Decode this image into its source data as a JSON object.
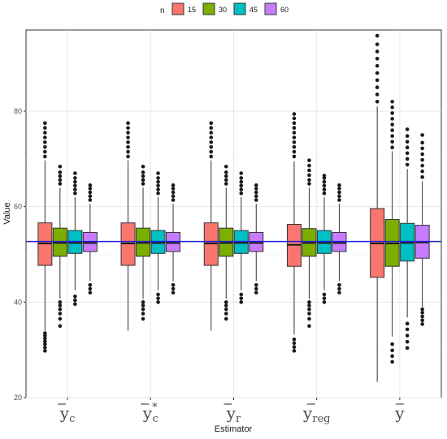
{
  "chart_data": {
    "type": "boxplot",
    "xlabel": "Estimator",
    "ylabel": "Value",
    "ylim": [
      20,
      97
    ],
    "yticks": [
      20,
      40,
      60,
      80
    ],
    "reference_line": 52.7,
    "reference_color": "#1f1fd6",
    "grid": true,
    "legend": {
      "title": "n",
      "placement": "top",
      "entries": [
        {
          "label": "15",
          "color": "#f8766d"
        },
        {
          "label": "30",
          "color": "#7cae00"
        },
        {
          "label": "45",
          "color": "#00bfc4"
        },
        {
          "label": "60",
          "color": "#c77cff"
        }
      ]
    },
    "categories": [
      {
        "base": "y",
        "sub": "c",
        "sup": ""
      },
      {
        "base": "y",
        "sub": "c",
        "sup": "*"
      },
      {
        "base": "y",
        "sub": "r",
        "sup": ""
      },
      {
        "base": "y",
        "sub": "reg",
        "sup": ""
      },
      {
        "base": "y",
        "sub": "",
        "sup": ""
      }
    ],
    "series": [
      {
        "name": "15",
        "boxes": [
          {
            "q1": 47.7,
            "median": 52.3,
            "q3": 56.6,
            "whisker_low": 34.0,
            "whisker_high": 69.7,
            "outliers": [
              29.8,
              30.5,
              31.2,
              31.8,
              32.4,
              33.0,
              33.5,
              70.5,
              71.5,
              72.5,
              73.5,
              74.5,
              75.5,
              76.5,
              77.5
            ]
          },
          {
            "q1": 47.7,
            "median": 52.3,
            "q3": 56.6,
            "whisker_low": 34.0,
            "whisker_high": 69.7,
            "outliers": [
              70.5,
              71.5,
              72.5,
              73.5,
              74.5,
              75.5,
              76.5,
              77.5
            ]
          },
          {
            "q1": 47.7,
            "median": 52.3,
            "q3": 56.6,
            "whisker_low": 34.0,
            "whisker_high": 69.7,
            "outliers": [
              70.5,
              71.5,
              72.5,
              73.5,
              74.5,
              75.5,
              76.5,
              77.5
            ]
          },
          {
            "q1": 47.5,
            "median": 52.0,
            "q3": 56.3,
            "whisker_low": 33.2,
            "whisker_high": 69.5,
            "outliers": [
              29.8,
              30.6,
              31.4,
              32.2,
              70.5,
              71.5,
              72.5,
              73.5,
              74.5,
              75.5,
              76.5,
              77.5,
              78.5,
              79.4
            ]
          },
          {
            "q1": 45.2,
            "median": 52.3,
            "q3": 59.6,
            "whisker_low": 23.3,
            "whisker_high": 81.0,
            "outliers": [
              82.0,
              83.5,
              85.0,
              86.5,
              88.0,
              89.5,
              91.0,
              92.5,
              94.0,
              95.8
            ]
          }
        ]
      },
      {
        "name": "30",
        "boxes": [
          {
            "q1": 49.6,
            "median": 52.4,
            "q3": 55.5,
            "whisker_low": 40.7,
            "whisker_high": 64.0,
            "outliers": [
              35.0,
              36.5,
              37.6,
              38.5,
              39.3,
              40.0,
              64.8,
              65.6,
              66.4,
              67.2,
              68.4
            ]
          },
          {
            "q1": 49.6,
            "median": 52.4,
            "q3": 55.5,
            "whisker_low": 40.7,
            "whisker_high": 64.0,
            "outliers": [
              36.5,
              37.6,
              38.5,
              39.3,
              40.0,
              64.8,
              65.6,
              66.4,
              67.2,
              68.4
            ]
          },
          {
            "q1": 49.6,
            "median": 52.4,
            "q3": 55.5,
            "whisker_low": 40.7,
            "whisker_high": 64.0,
            "outliers": [
              36.5,
              37.6,
              38.5,
              39.3,
              40.0,
              64.8,
              65.6,
              66.4,
              67.2,
              68.4
            ]
          },
          {
            "q1": 49.6,
            "median": 52.4,
            "q3": 55.4,
            "whisker_low": 40.7,
            "whisker_high": 64.0,
            "outliers": [
              35.0,
              36.5,
              37.6,
              38.5,
              39.3,
              40.0,
              64.8,
              65.6,
              66.6,
              67.6,
              68.6,
              69.7
            ]
          },
          {
            "q1": 47.5,
            "median": 52.3,
            "q3": 57.3,
            "whisker_low": 32.8,
            "whisker_high": 71.6,
            "outliers": [
              27.5,
              28.7,
              29.9,
              31.2,
              72.4,
              73.6,
              74.8,
              76.0,
              77.2,
              78.4,
              79.6,
              80.8,
              82.0
            ]
          }
        ]
      },
      {
        "name": "45",
        "boxes": [
          {
            "q1": 50.2,
            "median": 52.4,
            "q3": 55.0,
            "whisker_low": 42.5,
            "whisker_high": 62.0,
            "outliers": [
              39.6,
              40.4,
              41.2,
              62.8,
              63.6,
              64.4,
              65.2,
              66.0,
              67.0
            ]
          },
          {
            "q1": 50.2,
            "median": 52.4,
            "q3": 55.0,
            "whisker_low": 42.5,
            "whisker_high": 62.0,
            "outliers": [
              40.0,
              40.8,
              41.6,
              62.8,
              63.6,
              64.4,
              65.2,
              66.0,
              67.0
            ]
          },
          {
            "q1": 50.2,
            "median": 52.4,
            "q3": 55.0,
            "whisker_low": 42.5,
            "whisker_high": 62.0,
            "outliers": [
              40.0,
              40.8,
              41.6,
              62.8,
              63.6,
              64.4,
              65.2,
              66.0,
              67.0
            ]
          },
          {
            "q1": 50.2,
            "median": 52.4,
            "q3": 55.0,
            "whisker_low": 42.5,
            "whisker_high": 62.0,
            "outliers": [
              40.0,
              40.8,
              41.6,
              62.8,
              63.6,
              64.4,
              65.2,
              66.0,
              66.5
            ]
          },
          {
            "q1": 48.6,
            "median": 52.4,
            "q3": 56.5,
            "whisker_low": 36.8,
            "whisker_high": 67.9,
            "outliers": [
              30.4,
              31.7,
              33.0,
              34.3,
              35.5,
              68.8,
              70.0,
              71.2,
              72.4,
              73.6,
              74.8,
              76.2
            ]
          }
        ]
      },
      {
        "name": "60",
        "boxes": [
          {
            "q1": 50.6,
            "median": 52.4,
            "q3": 54.6,
            "whisker_low": 44.4,
            "whisker_high": 60.6,
            "outliers": [
              42.0,
              42.8,
              43.6,
              61.4,
              62.2,
              63.0,
              63.8,
              64.5
            ]
          },
          {
            "q1": 50.6,
            "median": 52.4,
            "q3": 54.6,
            "whisker_low": 44.4,
            "whisker_high": 60.6,
            "outliers": [
              42.0,
              42.8,
              43.6,
              61.4,
              62.2,
              63.0,
              63.8,
              64.5
            ]
          },
          {
            "q1": 50.6,
            "median": 52.4,
            "q3": 54.6,
            "whisker_low": 44.4,
            "whisker_high": 60.6,
            "outliers": [
              42.0,
              42.8,
              43.6,
              61.4,
              62.2,
              63.0,
              63.8,
              64.5
            ]
          },
          {
            "q1": 50.6,
            "median": 52.4,
            "q3": 54.6,
            "whisker_low": 44.4,
            "whisker_high": 60.6,
            "outliers": [
              42.0,
              42.8,
              43.6,
              61.4,
              62.2,
              63.0,
              63.8,
              64.5
            ]
          },
          {
            "q1": 49.2,
            "median": 52.5,
            "q3": 56.1,
            "whisker_low": 39.0,
            "whisker_high": 65.3,
            "outliers": [
              35.4,
              36.2,
              37.0,
              37.8,
              38.5,
              66.2,
              67.4,
              68.6,
              69.8,
              71.0,
              72.2,
              73.4,
              75.0
            ]
          }
        ]
      }
    ]
  }
}
